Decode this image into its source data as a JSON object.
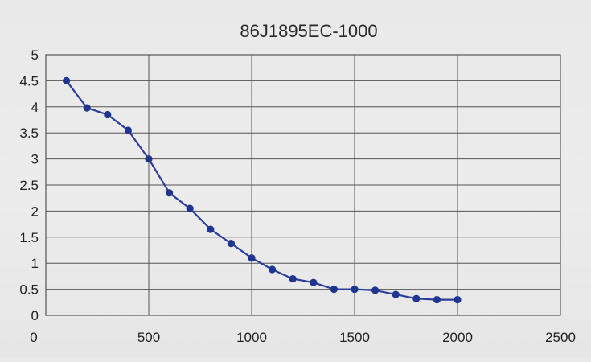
{
  "chart_data": {
    "type": "line",
    "title": "86J1895EC-1000",
    "xlabel": "",
    "ylabel": "",
    "xlim": [
      0,
      2500
    ],
    "ylim": [
      0,
      5
    ],
    "x_ticks": [
      0,
      500,
      1000,
      1500,
      2000,
      2500
    ],
    "y_ticks": [
      0,
      0.5,
      1,
      1.5,
      2,
      2.5,
      3,
      3.5,
      4,
      4.5,
      5
    ],
    "x_tick_labels": [
      "0",
      "500",
      "1000",
      "1500",
      "2000",
      "2500"
    ],
    "y_tick_labels": [
      "0",
      "0.5",
      "1",
      "1.5",
      "2",
      "2.5",
      "3",
      "3.5",
      "4",
      "4.5",
      "5"
    ],
    "grid": true,
    "legend": "none",
    "colors": {
      "line": "#2c3e9c",
      "marker": "#1f3590",
      "grid": "#555555",
      "text": "#222222"
    },
    "series": [
      {
        "x": [
          100,
          200,
          300,
          400,
          500,
          600,
          700,
          800,
          900,
          1000,
          1100,
          1200,
          1300,
          1400,
          1500,
          1600,
          1700,
          1800,
          1900,
          2000
        ],
        "y": [
          4.5,
          3.98,
          3.85,
          3.55,
          3.0,
          2.35,
          2.05,
          1.65,
          1.38,
          1.1,
          0.88,
          0.7,
          0.63,
          0.5,
          0.5,
          0.48,
          0.4,
          0.32,
          0.3,
          0.3
        ]
      }
    ]
  }
}
